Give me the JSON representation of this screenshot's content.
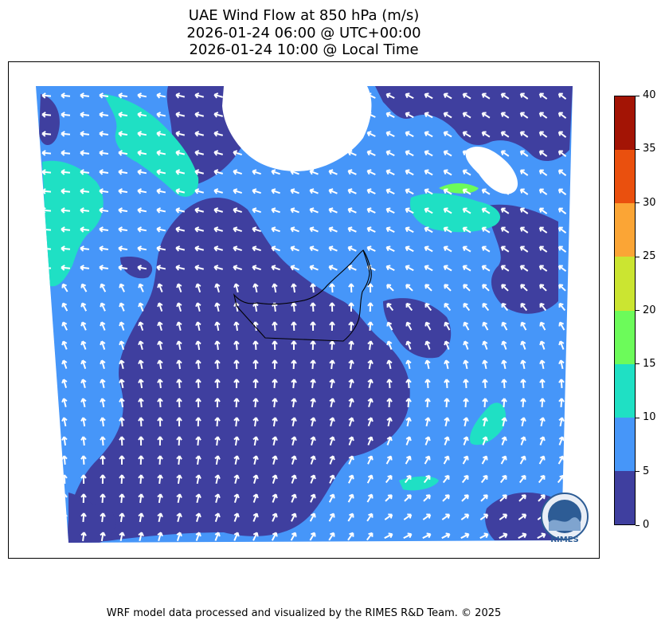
{
  "title": {
    "line1": "UAE Wind Flow at 850 hPa (m/s)",
    "line2": "2026-01-24 06:00 @ UTC+00:00",
    "line3": "2026-01-24 10:00 @ Local Time"
  },
  "colorbar": {
    "ticks": [
      "0",
      "5",
      "10",
      "15",
      "20",
      "25",
      "30",
      "35",
      "40"
    ],
    "colors": [
      "#3f3f9f",
      "#4696f9",
      "#1fe0c4",
      "#6cfb5a",
      "#cbe531",
      "#fba535",
      "#ea500e",
      "#a31405"
    ]
  },
  "map": {
    "fill_colors": {
      "calm": "#3f3f9f",
      "moderate": "#4696f9",
      "strong": "#1fe0c4",
      "stronger": "#6cfb5a"
    },
    "arrow_color": "#ffffff",
    "boundary_color": "#000000"
  },
  "logo": {
    "text": "RIMES",
    "ring_text": "Regional Integrated Multi-Hazard Early Warning System"
  },
  "footer": "WRF model data processed and visualized by the RIMES R&D Team. © 2025"
}
